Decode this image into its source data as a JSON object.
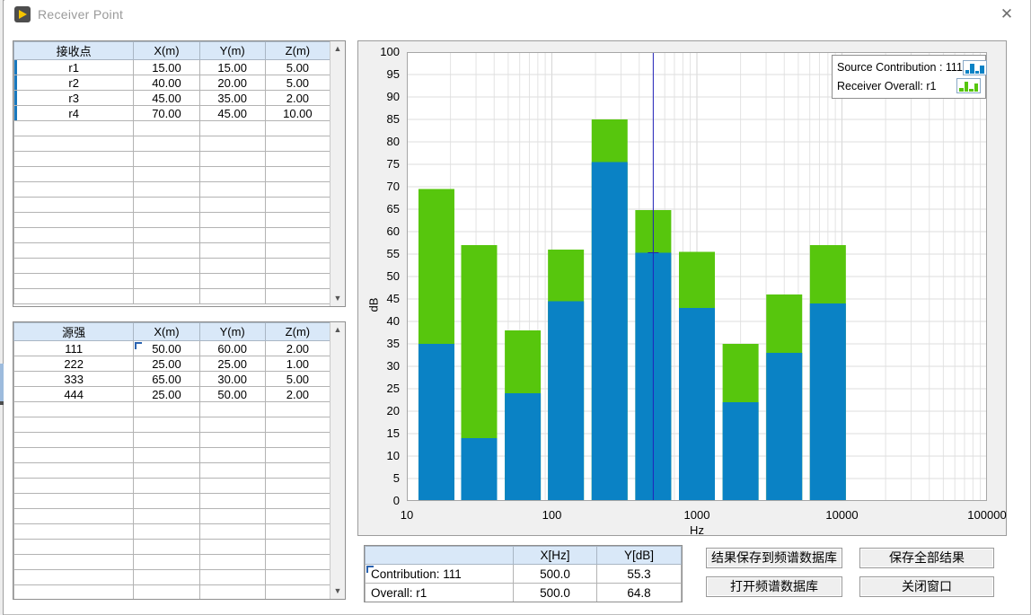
{
  "window": {
    "title": "Receiver Point",
    "close_glyph": "✕"
  },
  "receiver_table": {
    "headers": [
      "接收点",
      "X(m)",
      "Y(m)",
      "Z(m)"
    ],
    "rows": [
      [
        "r1",
        "15.00",
        "15.00",
        "5.00"
      ],
      [
        "r2",
        "40.00",
        "20.00",
        "5.00"
      ],
      [
        "r3",
        "45.00",
        "35.00",
        "2.00"
      ],
      [
        "r4",
        "70.00",
        "45.00",
        "10.00"
      ]
    ],
    "visible_row_count": 16
  },
  "source_table": {
    "headers": [
      "源强",
      "X(m)",
      "Y(m)",
      "Z(m)"
    ],
    "rows": [
      [
        "111",
        "50.00",
        "60.00",
        "2.00"
      ],
      [
        "222",
        "25.00",
        "25.00",
        "1.00"
      ],
      [
        "333",
        "65.00",
        "30.00",
        "5.00"
      ],
      [
        "444",
        "25.00",
        "50.00",
        "2.00"
      ]
    ],
    "visible_row_count": 17
  },
  "chart_data": {
    "type": "bar",
    "stacked": true,
    "x_scale": "log",
    "xlabel": "Hz",
    "ylabel": "dB",
    "ylim": [
      0,
      100
    ],
    "y_tick_step": 5,
    "x_ticks": [
      10,
      100,
      1000,
      10000,
      100000
    ],
    "grid": true,
    "legend_position": "top-right",
    "categories": [
      16,
      31.5,
      63,
      125,
      250,
      500,
      1000,
      2000,
      4000,
      8000
    ],
    "series": [
      {
        "name": "Source Contribution : 111",
        "color": "#0a82c5",
        "values": [
          35,
          14,
          24,
          44.5,
          75.5,
          55.3,
          43,
          22,
          33,
          44
        ]
      },
      {
        "name": "Receiver Overall: r1",
        "color": "#57c60d",
        "values": [
          69.5,
          57,
          38,
          56,
          85,
          64.8,
          55.5,
          35,
          46,
          57
        ]
      }
    ],
    "cursor": {
      "x": 500,
      "y": 55.3,
      "color": "#2222bb"
    }
  },
  "readout_table": {
    "headers": [
      "",
      "X[Hz]",
      "Y[dB]"
    ],
    "rows": [
      [
        "Contribution: 111",
        "500.0",
        "55.3"
      ],
      [
        "Overall: r1",
        "500.0",
        "64.8"
      ]
    ]
  },
  "buttons": {
    "save_to_spectrum_db": "结果保存到频谱数据库",
    "save_all_results": "保存全部结果",
    "open_spectrum_db": "打开频谱数据库",
    "close_window": "关闭窗口"
  },
  "colors": {
    "contribution_bar": "#0a82c5",
    "overall_bar": "#57c60d",
    "cursor_line": "#2222bb",
    "table_header_bg": "#d9e8f8",
    "chart_panel_bg": "#f0f0f0"
  }
}
